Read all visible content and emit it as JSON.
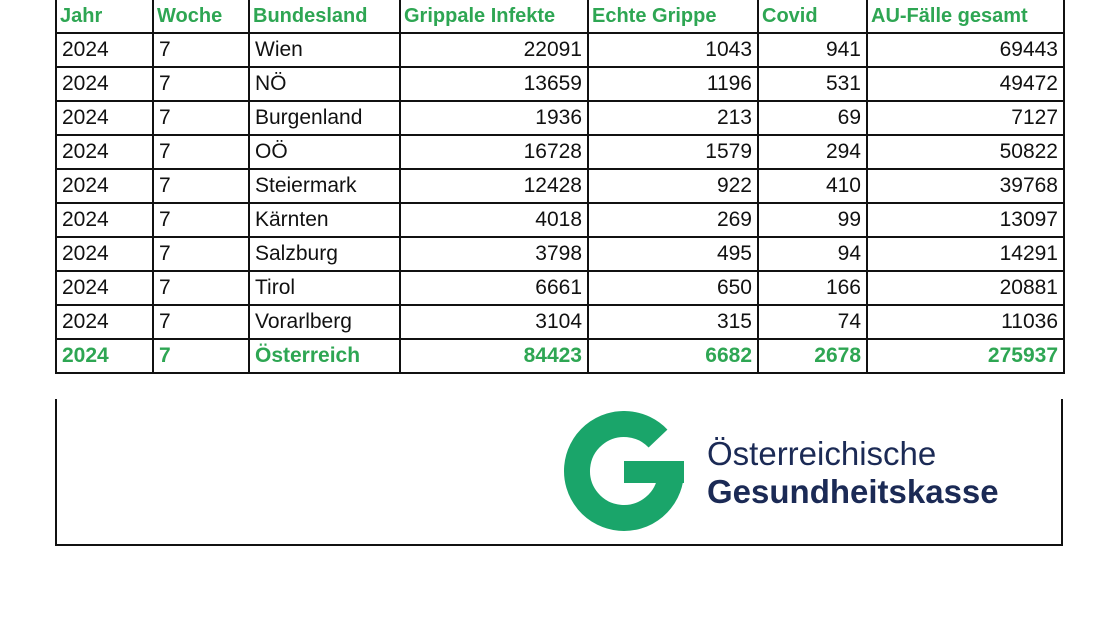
{
  "table": {
    "headers": [
      "Jahr",
      "Woche",
      "Bundesland",
      "Grippale Infekte",
      "Echte Grippe",
      "Covid",
      "AU-Fälle gesamt"
    ],
    "rows": [
      [
        "2024",
        "7",
        "Wien",
        "22091",
        "1043",
        "941",
        "69443"
      ],
      [
        "2024",
        "7",
        "NÖ",
        "13659",
        "1196",
        "531",
        "49472"
      ],
      [
        "2024",
        "7",
        "Burgenland",
        "1936",
        "213",
        "69",
        "7127"
      ],
      [
        "2024",
        "7",
        "OÖ",
        "16728",
        "1579",
        "294",
        "50822"
      ],
      [
        "2024",
        "7",
        "Steiermark",
        "12428",
        "922",
        "410",
        "39768"
      ],
      [
        "2024",
        "7",
        "Kärnten",
        "4018",
        "269",
        "99",
        "13097"
      ],
      [
        "2024",
        "7",
        "Salzburg",
        "3798",
        "495",
        "94",
        "14291"
      ],
      [
        "2024",
        "7",
        "Tirol",
        "6661",
        "650",
        "166",
        "20881"
      ],
      [
        "2024",
        "7",
        "Vorarlberg",
        "3104",
        "315",
        "74",
        "11036"
      ]
    ],
    "total": [
      "2024",
      "7",
      "Österreich",
      "84423",
      "6682",
      "2678",
      "275937"
    ]
  },
  "logo": {
    "line1": "Österreichische",
    "line2": "Gesundheitskasse"
  },
  "colors": {
    "header_green": "#2ea653",
    "logo_green": "#1aa56a",
    "logo_navy": "#1b2a55"
  }
}
